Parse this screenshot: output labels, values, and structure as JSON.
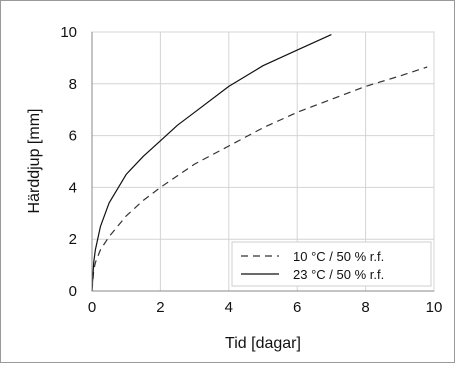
{
  "chart_data": {
    "type": "line",
    "title": "",
    "xlabel": "Tid [dagar]",
    "ylabel": "Härddjup [mm]",
    "xlim": [
      0,
      10
    ],
    "ylim": [
      0,
      10
    ],
    "xticks": [
      0,
      2,
      4,
      6,
      8,
      10
    ],
    "yticks": [
      0,
      2,
      4,
      6,
      8,
      10
    ],
    "grid": true,
    "legend_position": "bottom-right",
    "series": [
      {
        "name": "10 °C / 50 % r.f.",
        "style": "dashed",
        "color": "#333333",
        "x": [
          0,
          0.05,
          0.1,
          0.25,
          0.5,
          1,
          1.5,
          2,
          3,
          4,
          5,
          6,
          7,
          8,
          9,
          9.8
        ],
        "y": [
          0,
          0.8,
          1.1,
          1.6,
          2.1,
          2.9,
          3.5,
          4.0,
          4.9,
          5.6,
          6.3,
          6.9,
          7.4,
          7.9,
          8.3,
          8.65
        ]
      },
      {
        "name": "23 °C / 50 % r.f.",
        "style": "solid",
        "color": "#111111",
        "x": [
          0,
          0.05,
          0.1,
          0.25,
          0.5,
          1,
          1.5,
          2,
          2.5,
          3,
          4,
          5,
          6,
          7
        ],
        "y": [
          0,
          1.1,
          1.6,
          2.5,
          3.4,
          4.5,
          5.2,
          5.8,
          6.4,
          6.9,
          7.9,
          8.7,
          9.3,
          9.9
        ]
      }
    ]
  }
}
